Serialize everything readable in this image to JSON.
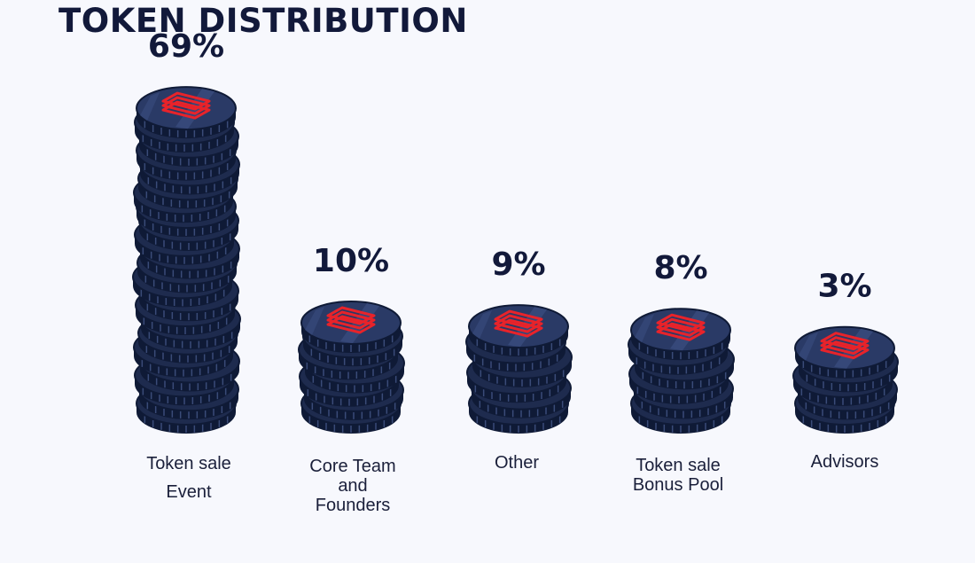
{
  "page": {
    "title": "TOKEN DISTRIBUTION"
  },
  "colors": {
    "background": "#f7f8fd",
    "title": "#12193a",
    "coin_body": "#1e2b4e",
    "coin_face": "#2a3a66",
    "coin_edge": "#0f1a36",
    "logo": "#e8232a"
  },
  "chart_data": {
    "type": "bar",
    "style": "coin-stacks",
    "title": "TOKEN DISTRIBUTION",
    "categories": [
      "Token sale\nEvent",
      "Core Team\nand\nFounders",
      "Other",
      "Token sale\nBonus Pool",
      "Advisors"
    ],
    "values": [
      69,
      10,
      9,
      8,
      3
    ],
    "value_labels": [
      "69%",
      "10%",
      "9%",
      "8%",
      "3%"
    ],
    "unit": "%"
  }
}
